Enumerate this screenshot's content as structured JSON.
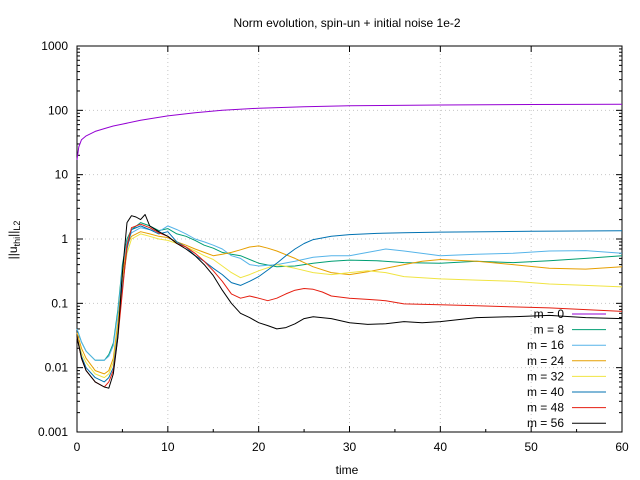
{
  "chart_data": {
    "type": "line",
    "title": "Norm evolution, spin-un + initial noise 1e-2",
    "xlabel": "time",
    "ylabel": "||u_thi||_L2",
    "ylabel_main": "||u",
    "ylabel_sub": "thi",
    "ylabel_close": "||",
    "ylabel_sub2": "L2",
    "xlim": [
      0,
      60
    ],
    "ylim": [
      0.001,
      1000
    ],
    "yscale": "log",
    "grid": true,
    "legend_position": "bottom-right",
    "xticks": [
      0,
      10,
      20,
      30,
      40,
      50,
      60
    ],
    "xtick_labels": [
      "0",
      "10",
      "20",
      "30",
      "40",
      "50",
      "60"
    ],
    "yticks": [
      0.001,
      0.01,
      0.1,
      1,
      10,
      100,
      1000
    ],
    "ytick_labels": [
      "0.001",
      "0.01",
      "0.1",
      "1",
      "10",
      "100",
      "1000"
    ],
    "series": [
      {
        "name": "m = 0",
        "color": "#9400d3",
        "x": [
          0,
          0.2,
          0.5,
          1,
          2,
          3,
          4,
          5,
          7,
          10,
          13,
          16,
          20,
          25,
          30,
          40,
          50,
          60
        ],
        "y": [
          17,
          27,
          35,
          40,
          47,
          52,
          57,
          61,
          70,
          82,
          92,
          100,
          108,
          114,
          118,
          121,
          123,
          124
        ]
      },
      {
        "name": "m = 8",
        "color": "#009e73",
        "x": [
          0,
          0.5,
          1,
          2,
          3,
          3.5,
          4,
          4.5,
          5,
          5.5,
          6,
          7,
          8,
          9,
          10,
          11,
          12,
          13,
          14,
          15,
          16,
          17,
          18,
          20,
          22,
          24,
          26,
          28,
          30,
          33,
          36,
          40,
          44,
          48,
          52,
          56,
          60
        ],
        "y": [
          0.04,
          0.025,
          0.018,
          0.013,
          0.013,
          0.016,
          0.024,
          0.08,
          0.4,
          1.0,
          1.4,
          1.8,
          1.6,
          1.35,
          1.45,
          1.2,
          1.1,
          0.95,
          0.8,
          0.72,
          0.62,
          0.58,
          0.55,
          0.42,
          0.37,
          0.38,
          0.42,
          0.45,
          0.47,
          0.46,
          0.43,
          0.42,
          0.45,
          0.43,
          0.46,
          0.5,
          0.55
        ]
      },
      {
        "name": "m = 16",
        "color": "#56b4e9",
        "x": [
          0,
          0.5,
          1,
          2,
          3,
          3.5,
          4,
          4.5,
          5,
          5.5,
          6,
          7,
          8,
          9,
          10,
          11,
          12,
          13,
          14,
          15,
          16,
          17,
          18,
          19,
          20,
          22,
          24,
          26,
          28,
          30,
          32,
          34,
          36,
          40,
          44,
          48,
          52,
          56,
          60
        ],
        "y": [
          0.04,
          0.025,
          0.018,
          0.013,
          0.013,
          0.015,
          0.022,
          0.07,
          0.35,
          0.9,
          1.25,
          1.5,
          1.4,
          1.3,
          1.6,
          1.4,
          1.2,
          1.0,
          0.9,
          0.8,
          0.7,
          0.55,
          0.5,
          0.4,
          0.38,
          0.4,
          0.45,
          0.52,
          0.55,
          0.55,
          0.62,
          0.7,
          0.65,
          0.55,
          0.58,
          0.6,
          0.65,
          0.66,
          0.6
        ]
      },
      {
        "name": "m = 24",
        "color": "#e69f00",
        "x": [
          0,
          0.5,
          1,
          2,
          3,
          3.5,
          4,
          4.5,
          5,
          5.5,
          6,
          7,
          8,
          9,
          10,
          11,
          12,
          13,
          14,
          15,
          16,
          17,
          18,
          19,
          20,
          21,
          22,
          24,
          26,
          28,
          30,
          32,
          34,
          36,
          38,
          40,
          44,
          48,
          52,
          56,
          60
        ],
        "y": [
          0.035,
          0.02,
          0.014,
          0.009,
          0.008,
          0.009,
          0.014,
          0.05,
          0.25,
          0.8,
          1.1,
          1.3,
          1.2,
          1.1,
          1.05,
          0.9,
          0.8,
          0.7,
          0.62,
          0.55,
          0.58,
          0.62,
          0.68,
          0.75,
          0.78,
          0.72,
          0.65,
          0.5,
          0.37,
          0.3,
          0.28,
          0.31,
          0.35,
          0.4,
          0.45,
          0.48,
          0.45,
          0.4,
          0.35,
          0.34,
          0.37
        ]
      },
      {
        "name": "m = 32",
        "color": "#f0e442",
        "x": [
          0,
          0.5,
          1,
          2,
          3,
          3.5,
          4,
          4.5,
          5,
          5.5,
          6,
          7,
          8,
          9,
          10,
          11,
          12,
          13,
          14,
          15,
          16,
          17,
          18,
          19,
          20,
          22,
          24,
          26,
          28,
          30,
          32,
          34,
          36,
          40,
          44,
          48,
          52,
          56,
          60
        ],
        "y": [
          0.03,
          0.017,
          0.012,
          0.008,
          0.007,
          0.008,
          0.012,
          0.04,
          0.2,
          0.6,
          1.0,
          1.2,
          1.1,
          1.0,
          0.95,
          0.85,
          0.75,
          0.65,
          0.55,
          0.48,
          0.38,
          0.3,
          0.25,
          0.28,
          0.32,
          0.4,
          0.35,
          0.3,
          0.28,
          0.3,
          0.32,
          0.3,
          0.26,
          0.24,
          0.23,
          0.22,
          0.2,
          0.19,
          0.18
        ]
      },
      {
        "name": "m = 40",
        "color": "#0072b2",
        "x": [
          0,
          0.5,
          1,
          2,
          3,
          3.5,
          4,
          4.5,
          5,
          5.5,
          6,
          7,
          8,
          9,
          10,
          11,
          12,
          13,
          14,
          15,
          16,
          17,
          18,
          19,
          20,
          21,
          22,
          23,
          24,
          25,
          26,
          28,
          30,
          33,
          36,
          40,
          45,
          50,
          55,
          60
        ],
        "y": [
          0.03,
          0.015,
          0.01,
          0.007,
          0.006,
          0.007,
          0.01,
          0.035,
          0.18,
          0.7,
          1.4,
          1.6,
          1.4,
          1.2,
          1.3,
          0.9,
          0.75,
          0.55,
          0.45,
          0.35,
          0.28,
          0.21,
          0.19,
          0.22,
          0.26,
          0.33,
          0.42,
          0.55,
          0.7,
          0.85,
          0.98,
          1.1,
          1.17,
          1.22,
          1.25,
          1.28,
          1.3,
          1.32,
          1.33,
          1.34
        ]
      },
      {
        "name": "m = 48",
        "color": "#e51e10",
        "x": [
          0,
          0.5,
          1,
          2,
          3,
          3.5,
          4,
          4.5,
          5,
          5.5,
          6,
          7,
          8,
          9,
          10,
          11,
          12,
          13,
          14,
          15,
          16,
          17,
          18,
          19,
          20,
          21,
          22,
          23,
          24,
          25,
          26,
          27,
          28,
          30,
          32,
          34,
          36,
          40,
          44,
          48,
          52,
          56,
          60
        ],
        "y": [
          0.03,
          0.014,
          0.009,
          0.006,
          0.005,
          0.006,
          0.009,
          0.03,
          0.15,
          0.8,
          1.5,
          1.7,
          1.5,
          1.25,
          1.1,
          0.85,
          0.75,
          0.6,
          0.45,
          0.32,
          0.22,
          0.14,
          0.12,
          0.13,
          0.12,
          0.11,
          0.12,
          0.14,
          0.16,
          0.17,
          0.165,
          0.15,
          0.13,
          0.12,
          0.115,
          0.11,
          0.098,
          0.095,
          0.092,
          0.088,
          0.085,
          0.08,
          0.075
        ]
      },
      {
        "name": "m = 56",
        "color": "#000000",
        "x": [
          0,
          0.5,
          1,
          2,
          3,
          3.5,
          4,
          4.5,
          5,
          5.5,
          6,
          6.5,
          7,
          7.5,
          8,
          9,
          10,
          11,
          12,
          13,
          14,
          15,
          16,
          17,
          18,
          19,
          20,
          21,
          22,
          23,
          24,
          25,
          26,
          28,
          30,
          32,
          34,
          36,
          38,
          40,
          44,
          48,
          52,
          56,
          60
        ],
        "y": [
          0.03,
          0.014,
          0.009,
          0.006,
          0.005,
          0.0048,
          0.008,
          0.03,
          0.3,
          1.8,
          2.3,
          2.2,
          2.0,
          2.4,
          1.6,
          1.3,
          1.1,
          0.85,
          0.7,
          0.55,
          0.4,
          0.27,
          0.16,
          0.1,
          0.07,
          0.06,
          0.05,
          0.045,
          0.04,
          0.042,
          0.048,
          0.058,
          0.062,
          0.058,
          0.05,
          0.047,
          0.048,
          0.052,
          0.05,
          0.052,
          0.06,
          0.062,
          0.065,
          0.06,
          0.058
        ]
      }
    ]
  }
}
